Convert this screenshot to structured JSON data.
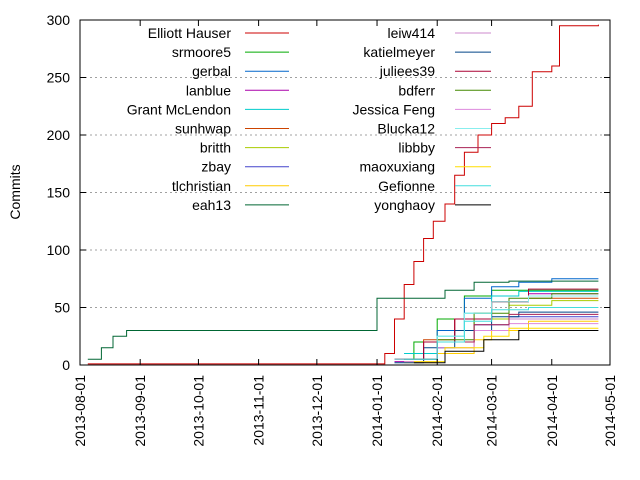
{
  "chart_data": {
    "type": "line",
    "title": "",
    "xlabel": "",
    "ylabel": "Commits",
    "ylim": [
      0,
      300
    ],
    "xlim": [
      "2013-08-01",
      "2014-05-01"
    ],
    "x_ticks": [
      "2013-08-01",
      "2013-09-01",
      "2013-10-01",
      "2013-11-01",
      "2013-12-01",
      "2014-01-01",
      "2014-02-01",
      "2014-03-01",
      "2014-04-01",
      "2014-05-01"
    ],
    "y_ticks": [
      0,
      50,
      100,
      150,
      200,
      250,
      300
    ],
    "grid": "horizontal dotted at y ticks",
    "step_style": "steps",
    "legend": {
      "placement": "top-left",
      "columns": 2
    },
    "series": [
      {
        "name": "Elliott Hauser",
        "color": "#cc0000",
        "points": [
          [
            "2013-08-05",
            1
          ],
          [
            "2014-01-01",
            1
          ],
          [
            "2014-01-05",
            10
          ],
          [
            "2014-01-10",
            40
          ],
          [
            "2014-01-15",
            70
          ],
          [
            "2014-01-20",
            90
          ],
          [
            "2014-01-25",
            110
          ],
          [
            "2014-01-30",
            125
          ],
          [
            "2014-02-05",
            140
          ],
          [
            "2014-02-10",
            165
          ],
          [
            "2014-02-15",
            185
          ],
          [
            "2014-02-22",
            200
          ],
          [
            "2014-03-01",
            210
          ],
          [
            "2014-03-08",
            215
          ],
          [
            "2014-03-15",
            225
          ],
          [
            "2014-03-22",
            255
          ],
          [
            "2014-04-01",
            260
          ],
          [
            "2014-04-05",
            295
          ],
          [
            "2014-04-25",
            296
          ]
        ]
      },
      {
        "name": "srmoore5",
        "color": "#00aa00",
        "points": [
          [
            "2014-01-10",
            5
          ],
          [
            "2014-01-20",
            20
          ],
          [
            "2014-02-01",
            40
          ],
          [
            "2014-02-15",
            60
          ],
          [
            "2014-03-01",
            65
          ],
          [
            "2014-04-25",
            65
          ]
        ]
      },
      {
        "name": "gerbal",
        "color": "#0066cc",
        "points": [
          [
            "2014-01-15",
            10
          ],
          [
            "2014-02-01",
            30
          ],
          [
            "2014-02-15",
            58
          ],
          [
            "2014-03-01",
            68
          ],
          [
            "2014-03-15",
            72
          ],
          [
            "2014-04-01",
            75
          ],
          [
            "2014-04-25",
            75
          ]
        ]
      },
      {
        "name": "lanblue",
        "color": "#aa00aa",
        "points": [
          [
            "2014-01-10",
            3
          ],
          [
            "2014-01-25",
            20
          ],
          [
            "2014-02-10",
            40
          ],
          [
            "2014-03-01",
            55
          ],
          [
            "2014-03-20",
            62
          ],
          [
            "2014-04-25",
            62
          ]
        ]
      },
      {
        "name": "Grant McLendon",
        "color": "#00cccc",
        "points": [
          [
            "2014-01-15",
            10
          ],
          [
            "2014-02-01",
            25
          ],
          [
            "2014-02-15",
            45
          ],
          [
            "2014-03-01",
            60
          ],
          [
            "2014-03-15",
            64
          ],
          [
            "2014-04-25",
            64
          ]
        ]
      },
      {
        "name": "sunhwap",
        "color": "#cc4400",
        "points": [
          [
            "2014-01-10",
            5
          ],
          [
            "2014-01-25",
            22
          ],
          [
            "2014-02-10",
            40
          ],
          [
            "2014-03-01",
            55
          ],
          [
            "2014-03-20",
            58
          ],
          [
            "2014-04-25",
            58
          ]
        ]
      },
      {
        "name": "britth",
        "color": "#aacc00",
        "points": [
          [
            "2014-01-15",
            3
          ],
          [
            "2014-02-01",
            20
          ],
          [
            "2014-02-20",
            40
          ],
          [
            "2014-03-10",
            52
          ],
          [
            "2014-04-01",
            56
          ],
          [
            "2014-04-25",
            56
          ]
        ]
      },
      {
        "name": "zbay",
        "color": "#4444cc",
        "points": [
          [
            "2014-01-10",
            5
          ],
          [
            "2014-02-01",
            20
          ],
          [
            "2014-02-20",
            35
          ],
          [
            "2014-03-10",
            42
          ],
          [
            "2014-04-25",
            42
          ]
        ]
      },
      {
        "name": "tlchristian",
        "color": "#ffcc00",
        "points": [
          [
            "2014-01-15",
            2
          ],
          [
            "2014-02-01",
            10
          ],
          [
            "2014-02-20",
            22
          ],
          [
            "2014-03-01",
            30
          ],
          [
            "2014-03-20",
            38
          ],
          [
            "2014-04-25",
            38
          ]
        ]
      },
      {
        "name": "eah13",
        "color": "#006633",
        "points": [
          [
            "2013-08-05",
            5
          ],
          [
            "2013-08-12",
            15
          ],
          [
            "2013-08-18",
            25
          ],
          [
            "2013-08-25",
            30
          ],
          [
            "2013-12-31",
            30
          ],
          [
            "2014-01-01",
            58
          ],
          [
            "2014-01-25",
            58
          ],
          [
            "2014-02-05",
            65
          ],
          [
            "2014-02-20",
            72
          ],
          [
            "2014-03-10",
            73
          ],
          [
            "2014-04-25",
            73
          ]
        ]
      },
      {
        "name": "leiw414",
        "color": "#cc88cc",
        "points": [
          [
            "2014-01-15",
            5
          ],
          [
            "2014-02-01",
            15
          ],
          [
            "2014-02-20",
            30
          ],
          [
            "2014-03-10",
            40
          ],
          [
            "2014-04-25",
            40
          ]
        ]
      },
      {
        "name": "katielmeyer",
        "color": "#004488",
        "points": [
          [
            "2014-01-10",
            2
          ],
          [
            "2014-01-25",
            15
          ],
          [
            "2014-02-10",
            30
          ],
          [
            "2014-03-01",
            42
          ],
          [
            "2014-03-15",
            46
          ],
          [
            "2014-04-25",
            46
          ]
        ]
      },
      {
        "name": "juliees39",
        "color": "#aa0033",
        "points": [
          [
            "2014-01-10",
            5
          ],
          [
            "2014-01-25",
            20
          ],
          [
            "2014-02-10",
            40
          ],
          [
            "2014-03-01",
            55
          ],
          [
            "2014-03-20",
            66
          ],
          [
            "2014-04-25",
            66
          ]
        ]
      },
      {
        "name": "bdferr",
        "color": "#448800",
        "points": [
          [
            "2014-01-15",
            5
          ],
          [
            "2014-02-01",
            22
          ],
          [
            "2014-02-20",
            45
          ],
          [
            "2014-03-10",
            58
          ],
          [
            "2014-04-01",
            62
          ],
          [
            "2014-04-25",
            62
          ]
        ]
      },
      {
        "name": "Jessica Feng",
        "color": "#dd88dd",
        "points": [
          [
            "2014-01-15",
            3
          ],
          [
            "2014-02-01",
            15
          ],
          [
            "2014-02-20",
            30
          ],
          [
            "2014-03-10",
            36
          ],
          [
            "2014-04-25",
            36
          ]
        ]
      },
      {
        "name": "Blucka12",
        "color": "#88eeee",
        "points": [
          [
            "2014-01-10",
            5
          ],
          [
            "2014-02-01",
            25
          ],
          [
            "2014-02-15",
            45
          ],
          [
            "2014-03-01",
            55
          ],
          [
            "2014-03-20",
            60
          ],
          [
            "2014-04-25",
            60
          ]
        ]
      },
      {
        "name": "libbby",
        "color": "#aa2255",
        "points": [
          [
            "2014-01-15",
            5
          ],
          [
            "2014-02-01",
            20
          ],
          [
            "2014-02-20",
            35
          ],
          [
            "2014-03-10",
            44
          ],
          [
            "2014-04-25",
            44
          ]
        ]
      },
      {
        "name": "maoxuxiang",
        "color": "#ffdd00",
        "points": [
          [
            "2014-01-20",
            3
          ],
          [
            "2014-02-05",
            15
          ],
          [
            "2014-02-25",
            25
          ],
          [
            "2014-03-10",
            32
          ],
          [
            "2014-04-25",
            32
          ]
        ]
      },
      {
        "name": "Gefionne",
        "color": "#44dddd",
        "points": [
          [
            "2014-01-15",
            5
          ],
          [
            "2014-02-01",
            20
          ],
          [
            "2014-02-15",
            38
          ],
          [
            "2014-03-01",
            48
          ],
          [
            "2014-03-20",
            50
          ],
          [
            "2014-04-25",
            50
          ]
        ]
      },
      {
        "name": "yonghaoy",
        "color": "#000000",
        "points": [
          [
            "2014-01-20",
            2
          ],
          [
            "2014-02-05",
            12
          ],
          [
            "2014-02-25",
            22
          ],
          [
            "2014-03-15",
            30
          ],
          [
            "2014-04-25",
            30
          ]
        ]
      }
    ]
  }
}
